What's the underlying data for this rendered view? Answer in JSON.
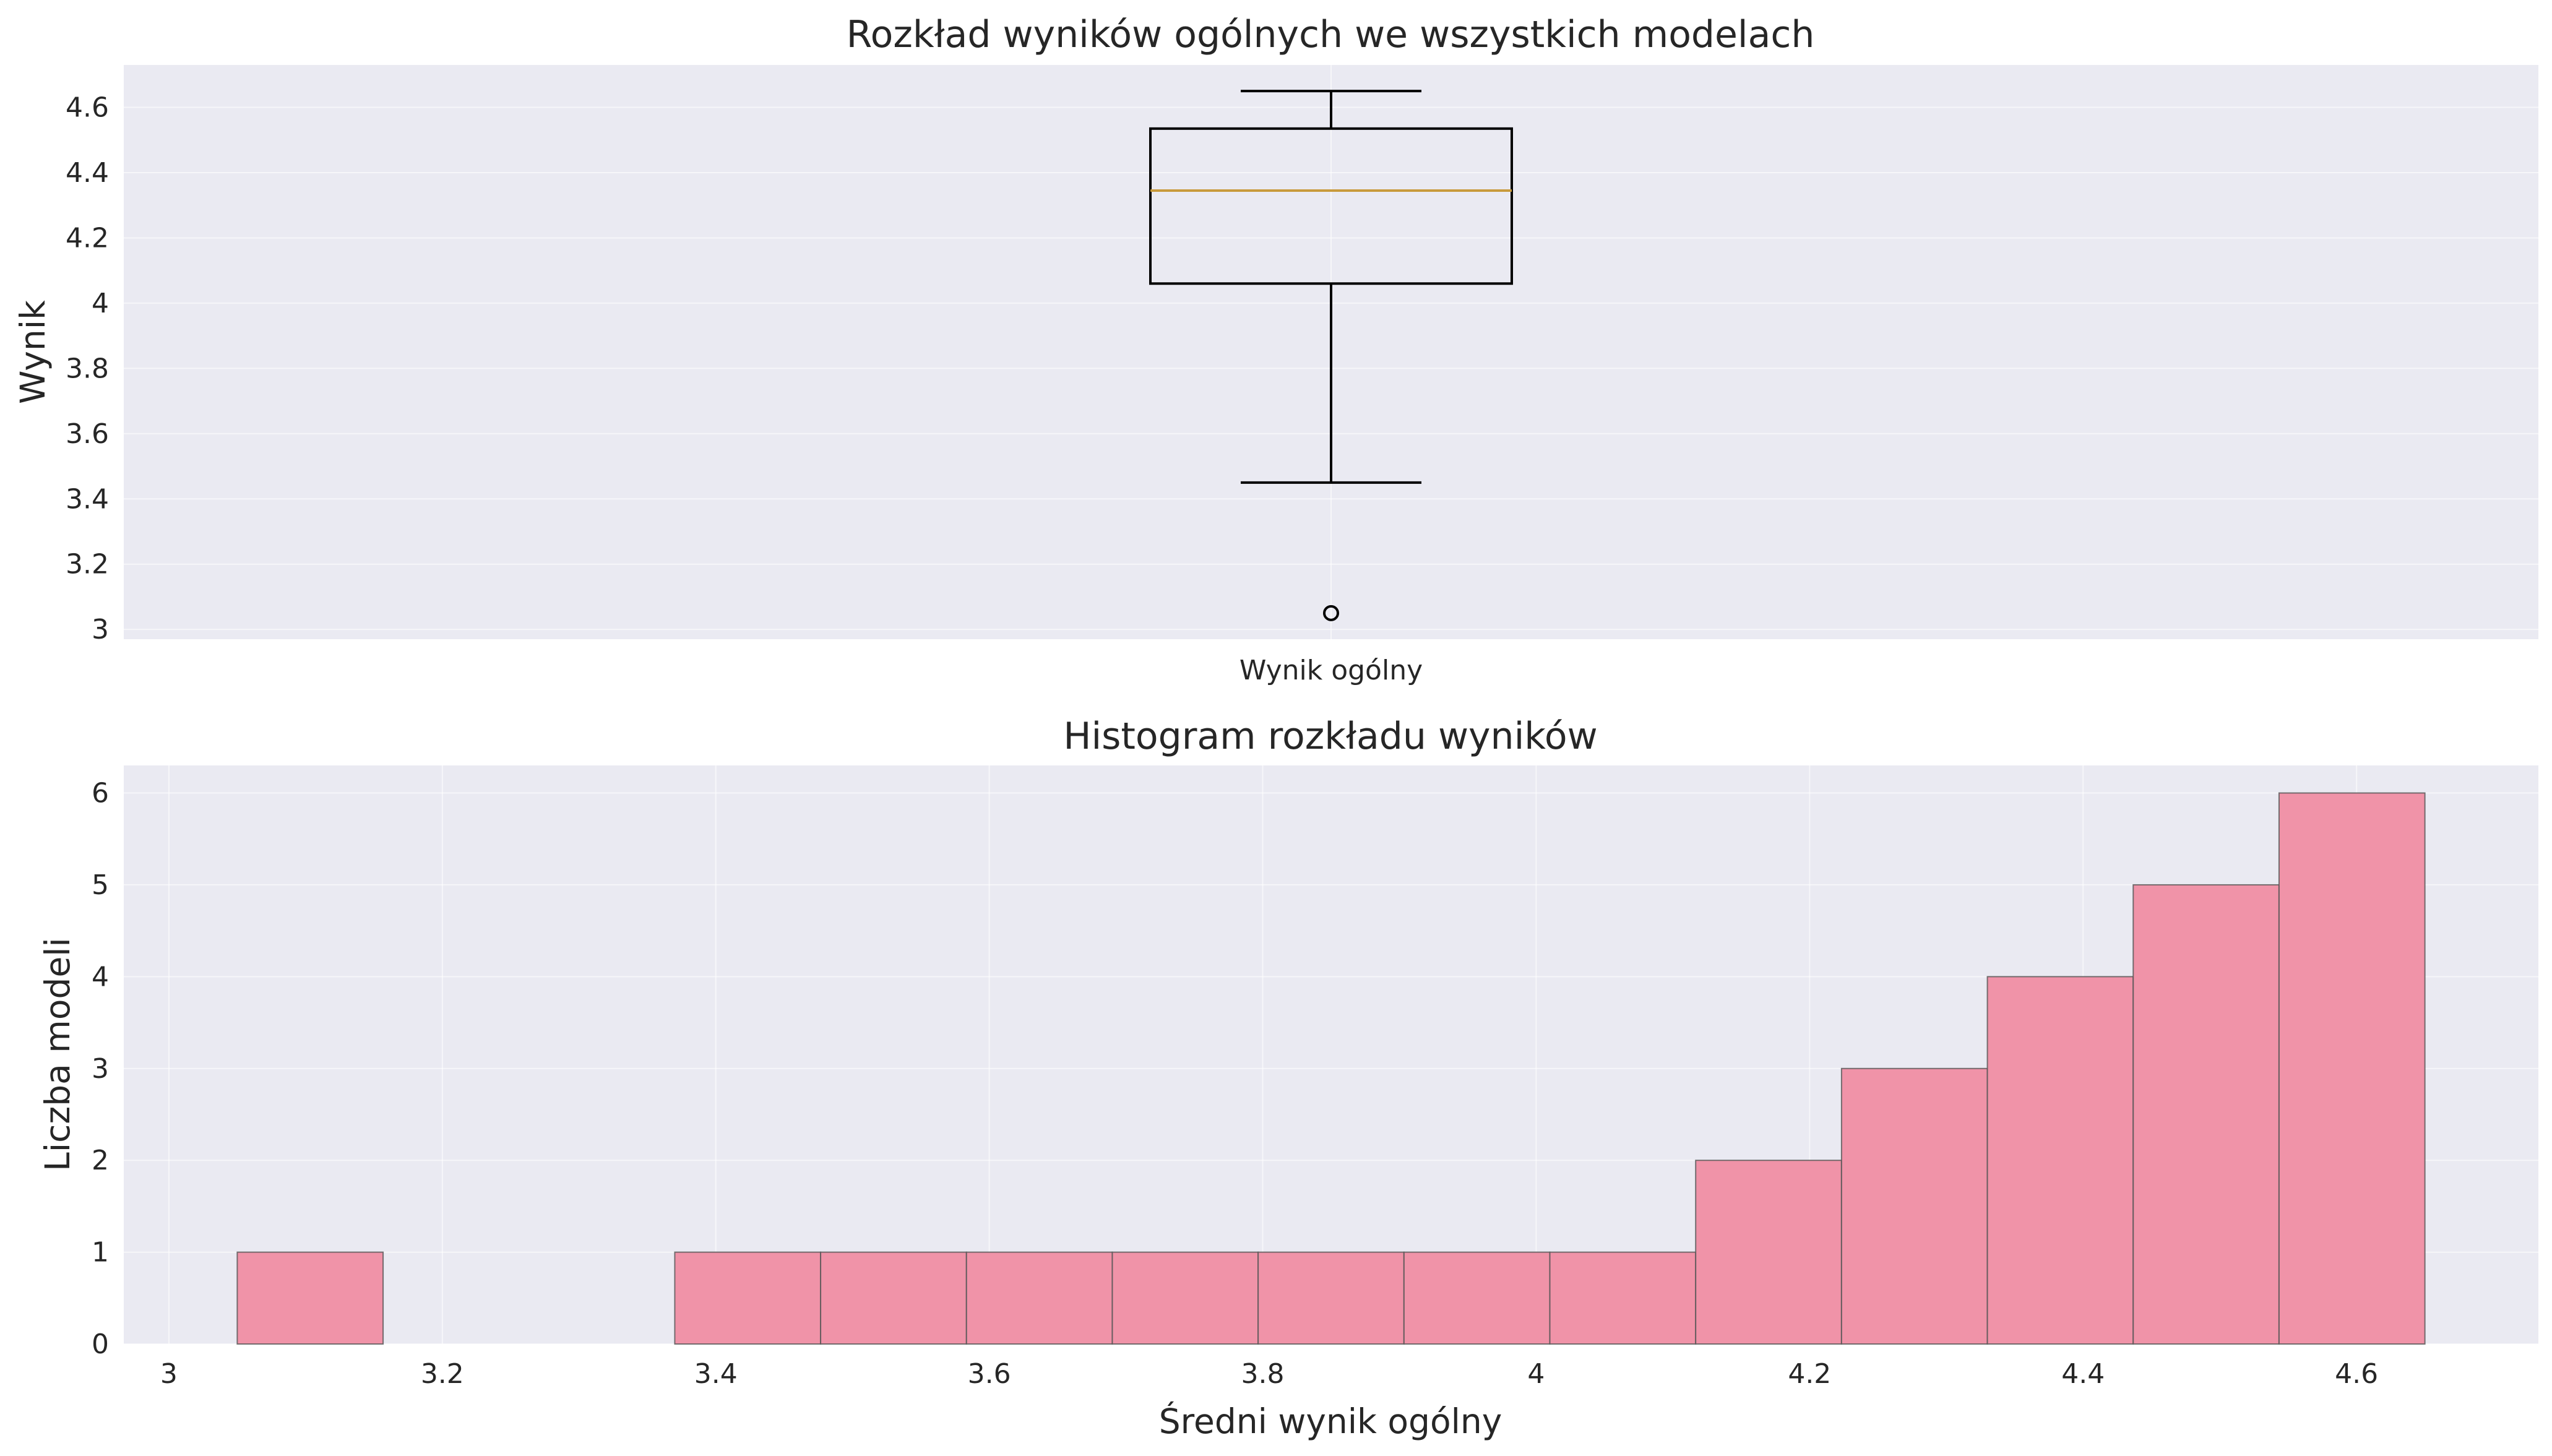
{
  "chart_data": [
    {
      "type": "box",
      "title": "Rozkład wyników ogólnych we wszystkich modelach",
      "ylabel": "Wynik",
      "xlabel": "",
      "categories": [
        "Wynik ogólny"
      ],
      "ylim": [
        2.97,
        4.73
      ],
      "yticks": [
        3.0,
        3.2,
        3.4,
        3.6,
        3.8,
        4.0,
        4.2,
        4.4,
        4.6
      ],
      "grid": true,
      "box": {
        "whisker_low": 3.45,
        "q1": 4.06,
        "median": 4.345,
        "q3": 4.535,
        "whisker_high": 4.65,
        "outliers": [
          3.05
        ]
      },
      "colors": {
        "box": "#000000",
        "median": "#c89a3c",
        "background": "#eaeaf2"
      }
    },
    {
      "type": "bar",
      "subtype": "histogram",
      "title": "Histogram rozkładu wyników",
      "xlabel": "Średni wynik ogólny",
      "ylabel": "Liczba modeli",
      "xlim": [
        2.967,
        4.733
      ],
      "ylim": [
        0,
        6.3
      ],
      "xticks": [
        3.0,
        3.2,
        3.4,
        3.6,
        3.8,
        4.0,
        4.2,
        4.4,
        4.6
      ],
      "yticks": [
        0,
        1,
        2,
        3,
        4,
        5,
        6
      ],
      "grid": true,
      "bin_edges": [
        3.05,
        3.15667,
        3.26333,
        3.37,
        3.47667,
        3.58333,
        3.69,
        3.79667,
        3.90333,
        4.01,
        4.11667,
        4.22333,
        4.33,
        4.43667,
        4.54333,
        4.65
      ],
      "counts": [
        1,
        0,
        0,
        1,
        1,
        1,
        1,
        1,
        1,
        1,
        2,
        3,
        4,
        5,
        6
      ],
      "colors": {
        "bar": "#f093a8",
        "edge": "#555555",
        "background": "#eaeaf2"
      }
    }
  ]
}
